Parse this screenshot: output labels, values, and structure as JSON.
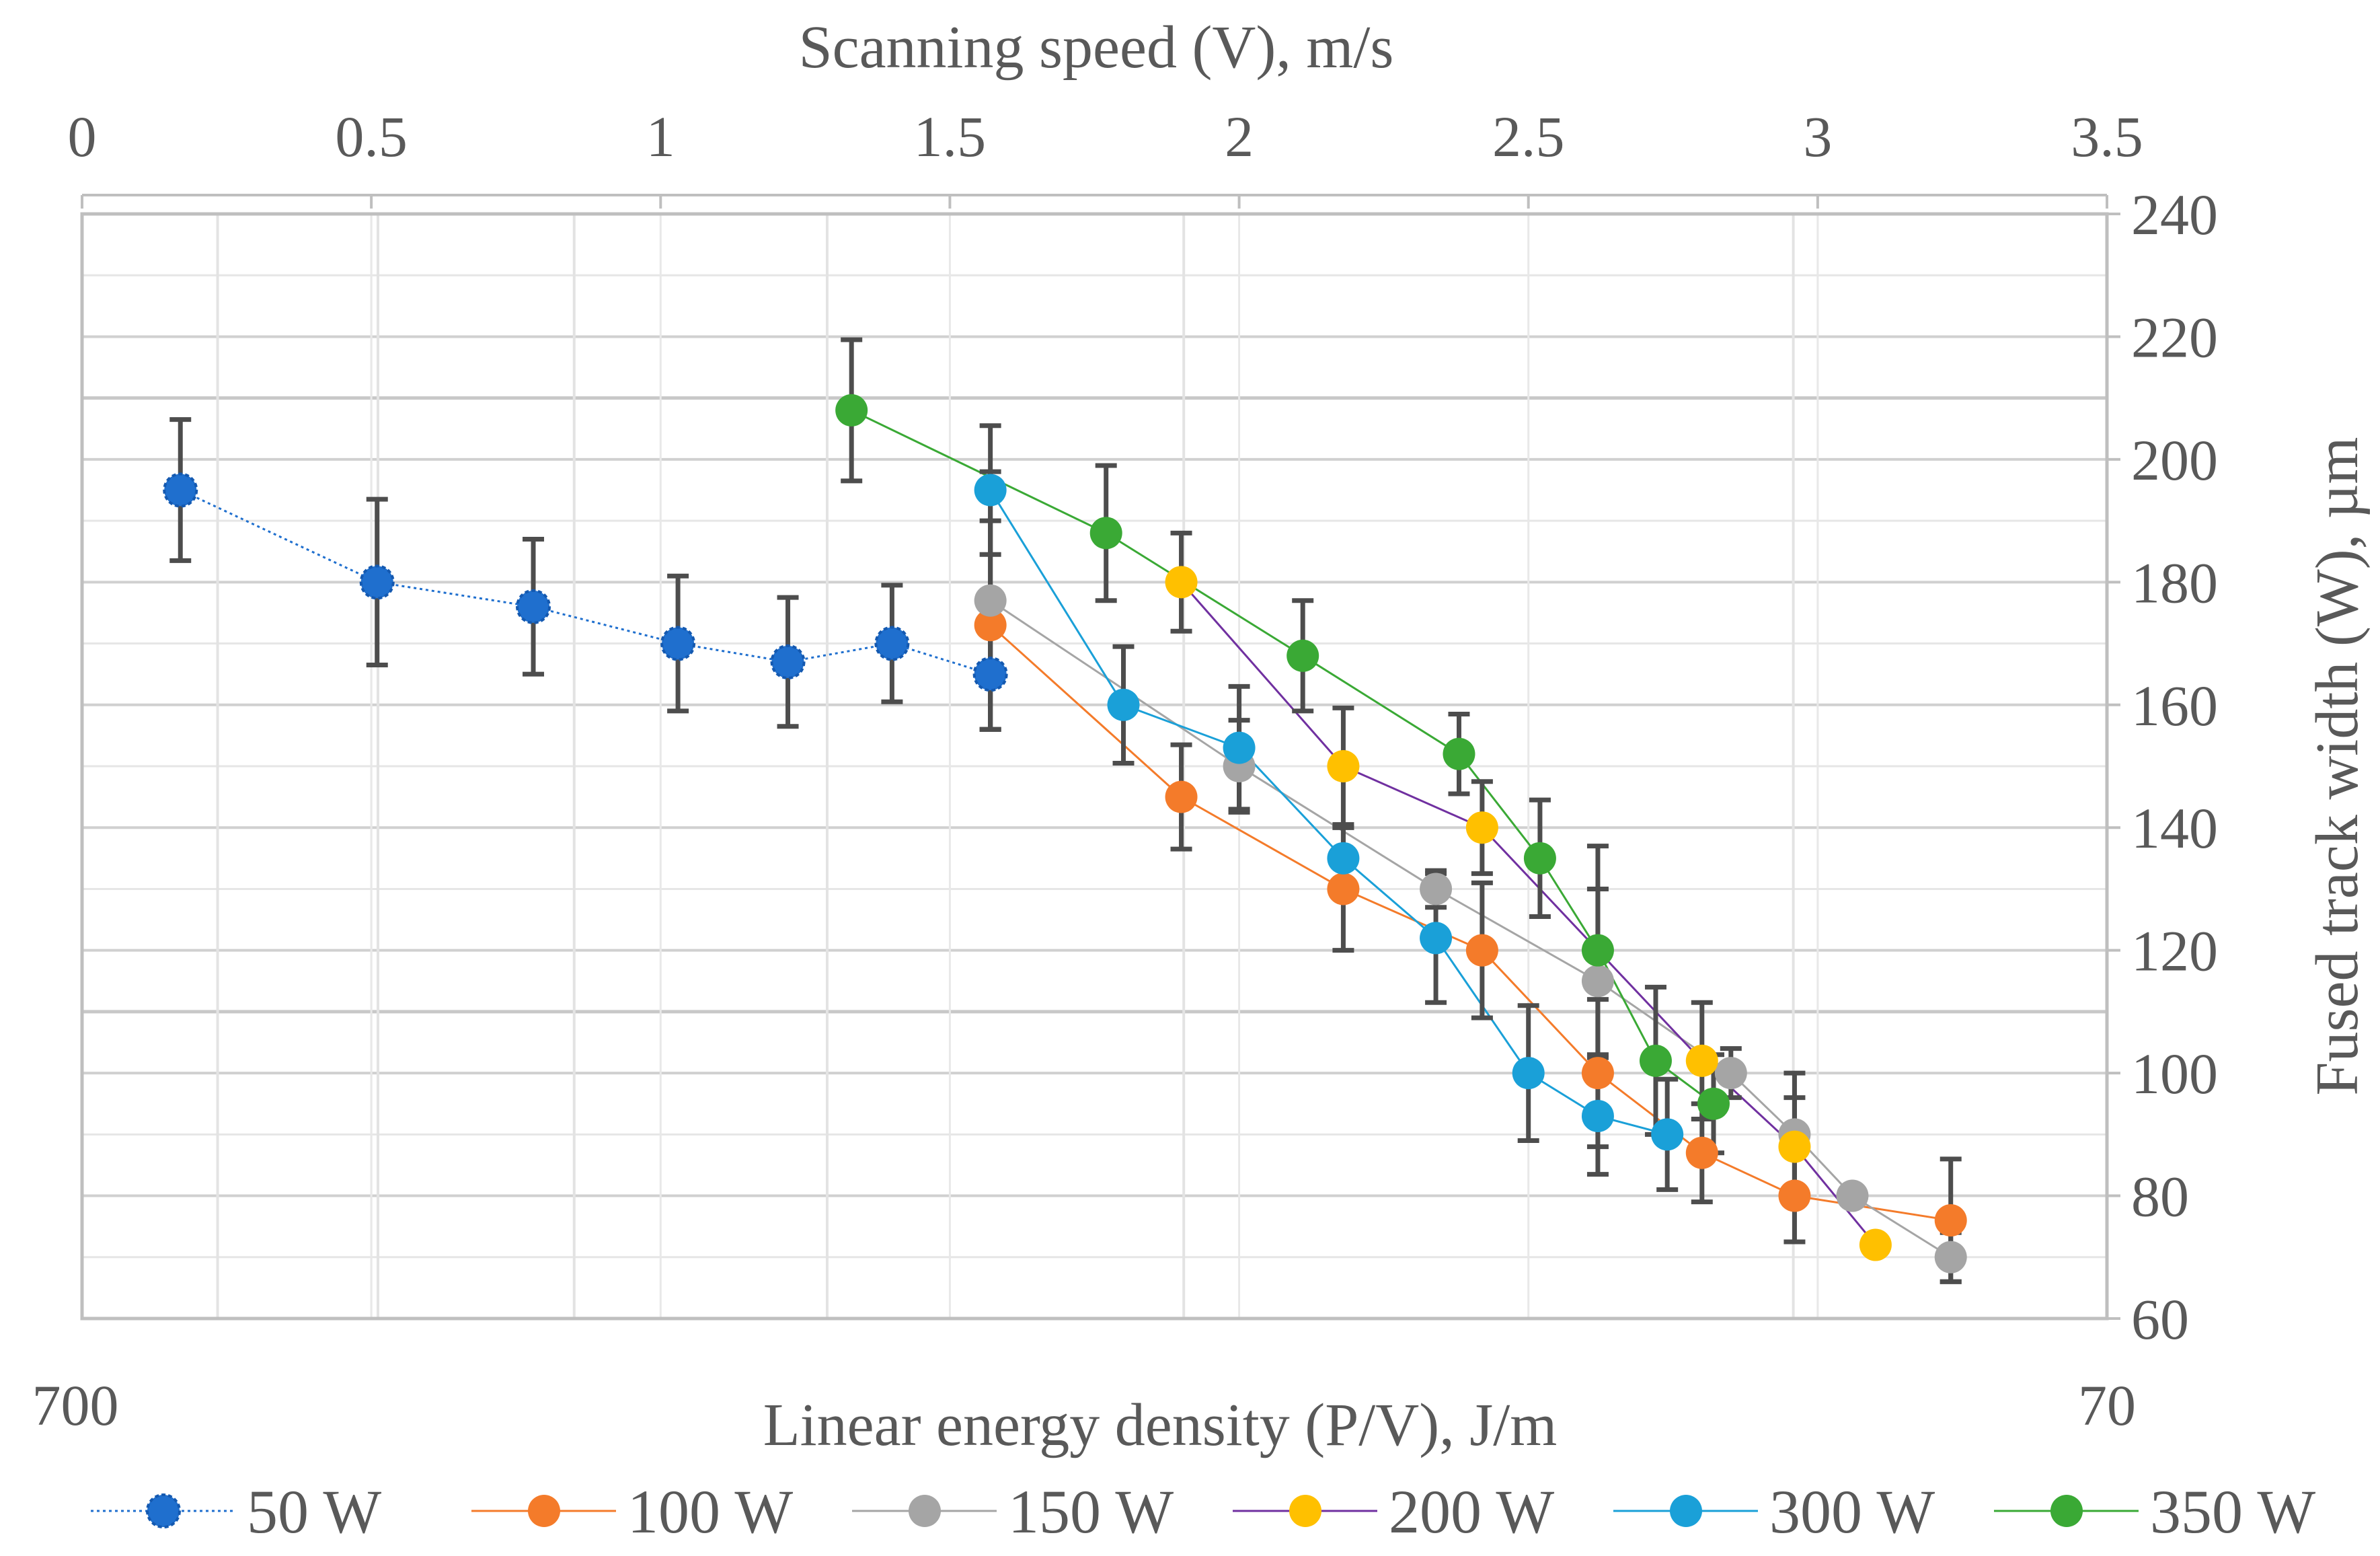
{
  "chart_data": {
    "type": "scatter",
    "title": "",
    "top_axis": {
      "label": "Scanning speed (V),  m/s",
      "range": [
        0,
        3.5
      ],
      "ticks": [
        "0",
        "0.5",
        "1",
        "1.5",
        "2",
        "2.5",
        "3",
        "3.5"
      ]
    },
    "bottom_axis": {
      "label": "Linear energy density (P/V), J/m",
      "scale": "log-reversed",
      "range": [
        700,
        70
      ],
      "ticks": [
        "700",
        "70"
      ]
    },
    "y_axis": {
      "label": "Fused track width (W), µm",
      "range": [
        60,
        240
      ],
      "ticks": [
        "60",
        "80",
        "100",
        "120",
        "140",
        "160",
        "180",
        "200",
        "220",
        "240"
      ]
    },
    "grid": true,
    "legend_position": "bottom",
    "series": [
      {
        "name": "50 W",
        "color": "#1f6fce",
        "line_style": "dotted",
        "points": [
          {
            "x": 0.17,
            "y": 195,
            "err": 11.5
          },
          {
            "x": 0.51,
            "y": 180,
            "err": 13.5
          },
          {
            "x": 0.78,
            "y": 176,
            "err": 11
          },
          {
            "x": 1.03,
            "y": 170,
            "err": 11
          },
          {
            "x": 1.22,
            "y": 167,
            "err": 10.5
          },
          {
            "x": 1.4,
            "y": 170,
            "err": 9.5
          },
          {
            "x": 1.57,
            "y": 165,
            "err": 9
          }
        ]
      },
      {
        "name": "100 W",
        "color": "#f47b2a",
        "line_style": "solid",
        "points": [
          {
            "x": 1.57,
            "y": 173,
            "err": 17
          },
          {
            "x": 1.9,
            "y": 145,
            "err": 8.5
          },
          {
            "x": 2.18,
            "y": 130,
            "err": 10
          },
          {
            "x": 2.42,
            "y": 120,
            "err": 11
          },
          {
            "x": 2.62,
            "y": 100,
            "err": 12
          },
          {
            "x": 2.8,
            "y": 87,
            "err": 8
          },
          {
            "x": 2.96,
            "y": 80,
            "err": 7.5
          },
          {
            "x": 3.23,
            "y": 76,
            "err": 10
          }
        ]
      },
      {
        "name": "150 W",
        "color": "#a5a5a5",
        "line_style": "solid",
        "points": [
          {
            "x": 1.57,
            "y": 177,
            "err": 21
          },
          {
            "x": 2.0,
            "y": 150,
            "err": 7.5
          },
          {
            "x": 2.34,
            "y": 130,
            "err": 3
          },
          {
            "x": 2.62,
            "y": 115,
            "err": 15
          },
          {
            "x": 2.85,
            "y": 100,
            "err": 4
          },
          {
            "x": 2.96,
            "y": 90,
            "err": 10
          },
          {
            "x": 3.06,
            "y": 80,
            "err": 1
          },
          {
            "x": 3.23,
            "y": 70,
            "err": 4
          }
        ]
      },
      {
        "name": "200 W",
        "color": "#ffc000",
        "line_style": "solid",
        "series_line_color": "#7030a0",
        "points": [
          {
            "x": 1.9,
            "y": 180,
            "err": 8
          },
          {
            "x": 2.18,
            "y": 150,
            "err": 9.5
          },
          {
            "x": 2.42,
            "y": 140,
            "err": 7.5
          },
          {
            "x": 2.8,
            "y": 102,
            "err": 9.5
          },
          {
            "x": 2.96,
            "y": 88,
            "err": 8
          },
          {
            "x": 3.1,
            "y": 72,
            "err": 0
          }
        ]
      },
      {
        "name": "300 W",
        "color": "#1aa0d8",
        "line_style": "solid",
        "points": [
          {
            "x": 1.57,
            "y": 195,
            "err": 10.5
          },
          {
            "x": 1.8,
            "y": 160,
            "err": 9.5
          },
          {
            "x": 2.0,
            "y": 153,
            "err": 10
          },
          {
            "x": 2.18,
            "y": 135,
            "err": 5
          },
          {
            "x": 2.34,
            "y": 122,
            "err": 10.5
          },
          {
            "x": 2.5,
            "y": 100,
            "err": 11
          },
          {
            "x": 2.62,
            "y": 93,
            "err": 9.5
          },
          {
            "x": 2.74,
            "y": 90,
            "err": 9
          }
        ]
      },
      {
        "name": "350 W",
        "color": "#3aa935",
        "line_style": "solid",
        "points": [
          {
            "x": 1.33,
            "y": 208,
            "err": 11.5
          },
          {
            "x": 1.77,
            "y": 188,
            "err": 11
          },
          {
            "x": 2.11,
            "y": 168,
            "err": 9
          },
          {
            "x": 2.38,
            "y": 152,
            "err": 6.5
          },
          {
            "x": 2.52,
            "y": 135,
            "err": 9.5
          },
          {
            "x": 2.62,
            "y": 120,
            "err": 17
          },
          {
            "x": 2.72,
            "y": 102,
            "err": 12
          },
          {
            "x": 2.82,
            "y": 95,
            "err": 8
          }
        ]
      }
    ]
  }
}
